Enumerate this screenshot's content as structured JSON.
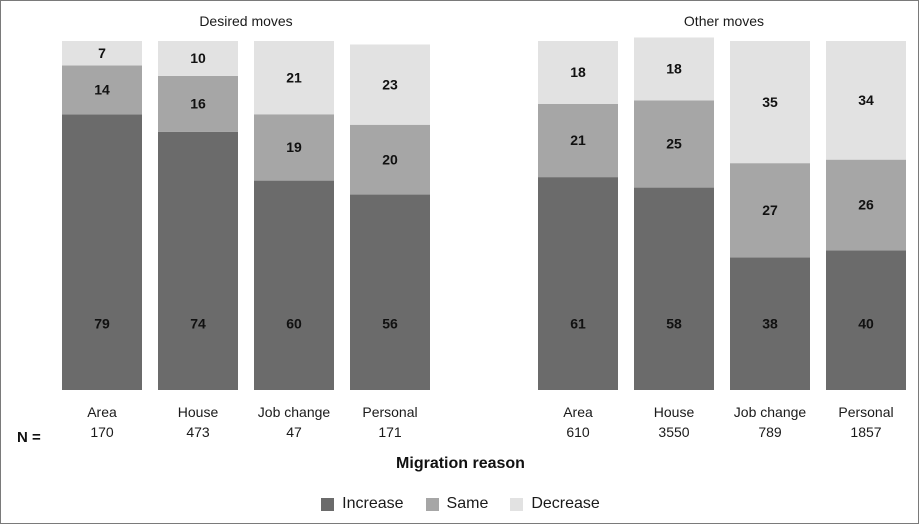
{
  "colors": {
    "increase": "#6b6b6b",
    "same": "#a6a6a6",
    "decrease": "#e2e2e2"
  },
  "n_label": "N =",
  "x_title": "Migration reason",
  "legend": [
    {
      "name": "Increase",
      "color": "#6b6b6b"
    },
    {
      "name": "Same",
      "color": "#a6a6a6"
    },
    {
      "name": "Decrease",
      "color": "#e2e2e2"
    }
  ],
  "chart_data": [
    {
      "type": "bar",
      "stacked": true,
      "title": "Desired moves",
      "xlabel": "Migration reason",
      "ylabel": "",
      "ylim": [
        0,
        100
      ],
      "categories": [
        "Area",
        "House",
        "Job change",
        "Personal"
      ],
      "n": [
        "170",
        "473",
        "47",
        "171"
      ],
      "series": [
        {
          "name": "Increase",
          "values": [
            79,
            74,
            60,
            56
          ]
        },
        {
          "name": "Same",
          "values": [
            14,
            16,
            19,
            20
          ]
        },
        {
          "name": "Decrease",
          "values": [
            7,
            10,
            21,
            23
          ]
        }
      ],
      "legend_position": "bottom",
      "grid": false
    },
    {
      "type": "bar",
      "stacked": true,
      "title": "Other moves",
      "xlabel": "Migration reason",
      "ylabel": "",
      "ylim": [
        0,
        100
      ],
      "categories": [
        "Area",
        "House",
        "Job change",
        "Personal"
      ],
      "n": [
        "610",
        "3550",
        "789",
        "1857"
      ],
      "series": [
        {
          "name": "Increase",
          "values": [
            61,
            58,
            38,
            40
          ]
        },
        {
          "name": "Same",
          "values": [
            21,
            25,
            27,
            26
          ]
        },
        {
          "name": "Decrease",
          "values": [
            18,
            18,
            35,
            34
          ]
        }
      ],
      "legend_position": "bottom",
      "grid": false
    }
  ]
}
